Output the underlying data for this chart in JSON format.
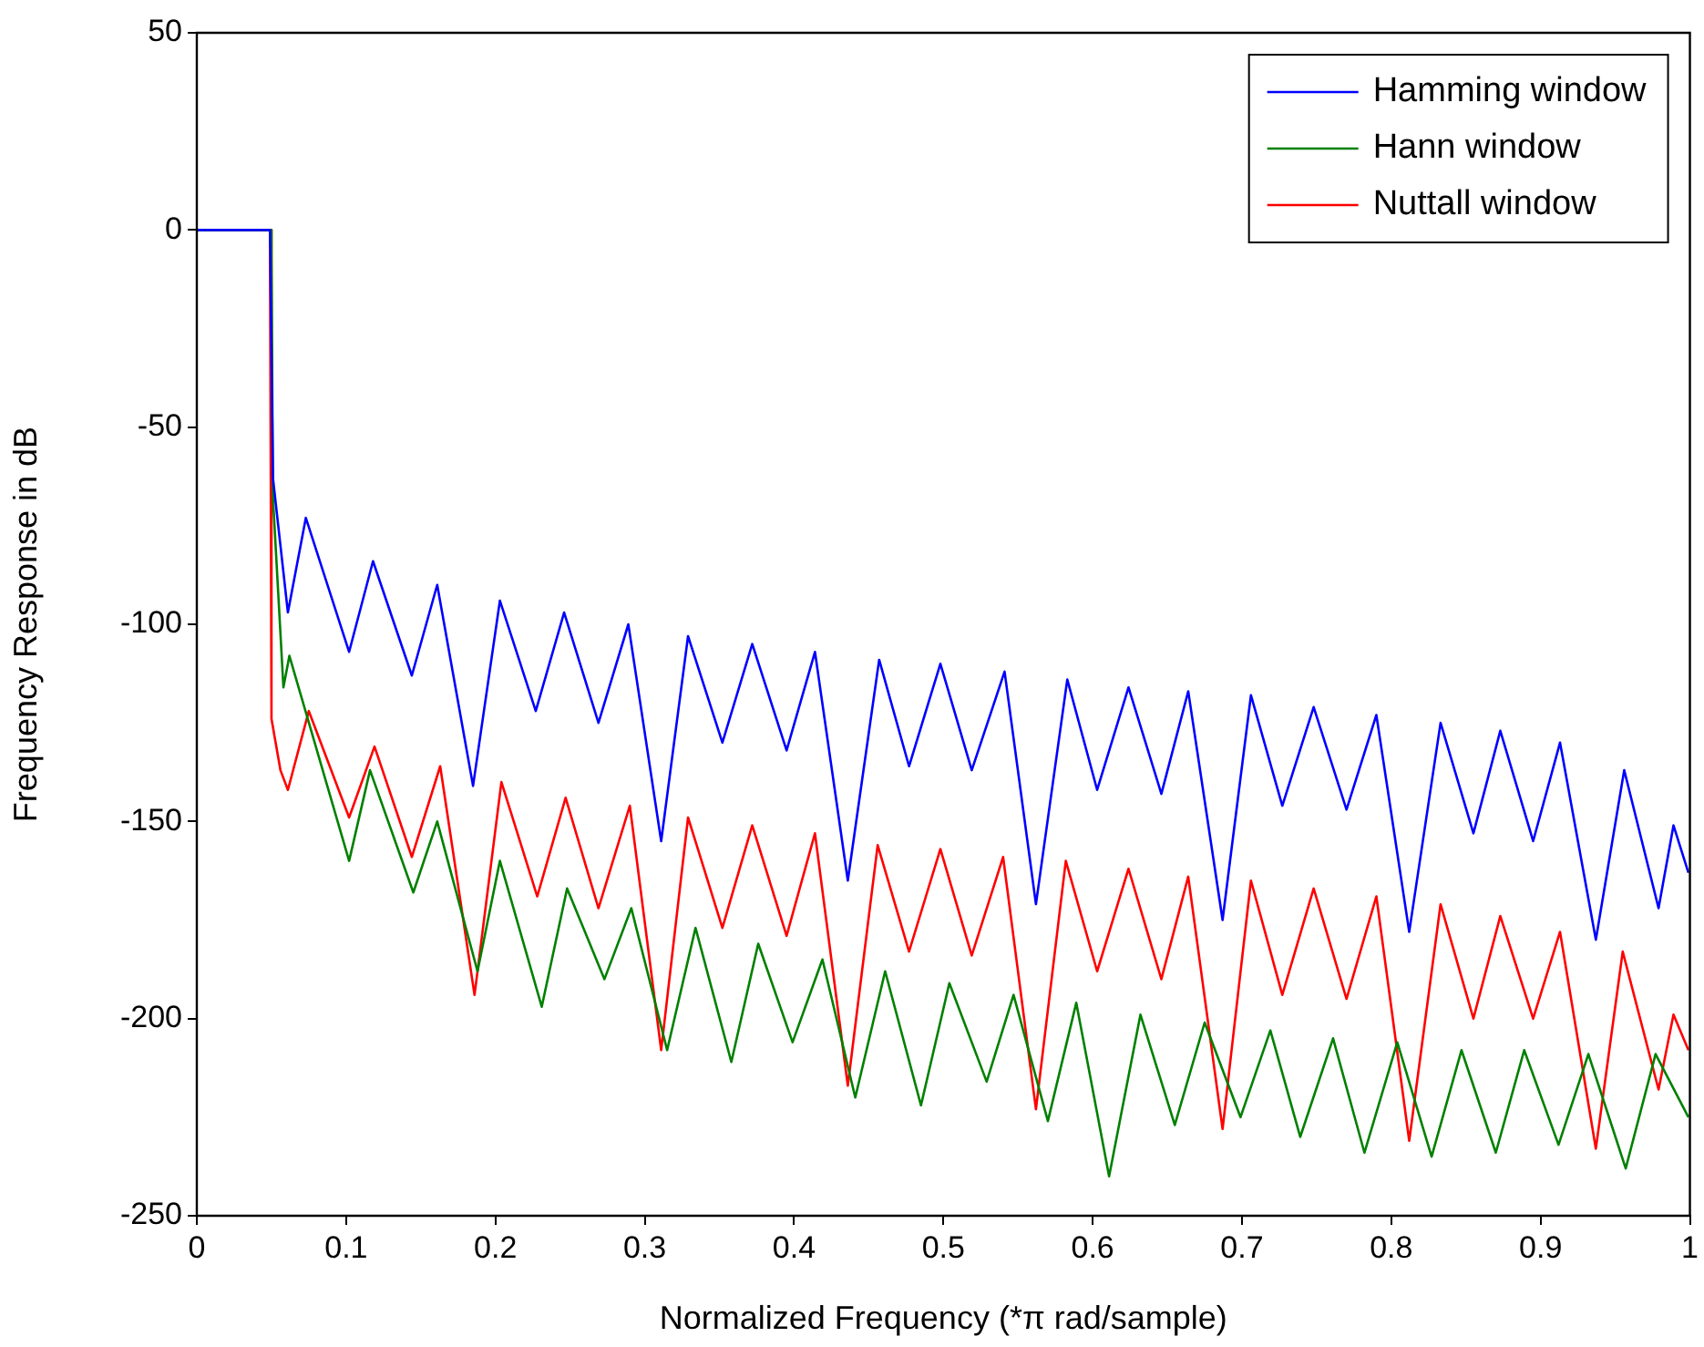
{
  "chart_data": {
    "type": "line",
    "xlabel": "Normalized Frequency (*π rad/sample)",
    "ylabel": "Frequency Response in dB",
    "xlim": [
      0,
      1
    ],
    "xticks": [
      0,
      0.1,
      0.2,
      0.3,
      0.4,
      0.5,
      0.6,
      0.7,
      0.8,
      0.9,
      1
    ],
    "ylim": [
      -250,
      50
    ],
    "yticks": [
      -250,
      -200,
      -150,
      -100,
      -50,
      0,
      50
    ],
    "grid": false,
    "legend": "top right",
    "marker": "none",
    "line_style": "solid",
    "series": [
      {
        "name": "Hamming window",
        "color": "#0000ff",
        "x": [
          0,
          0.049,
          0.051,
          0.061,
          0.073,
          0.102,
          0.118,
          0.144,
          0.161,
          0.185,
          0.203,
          0.227,
          0.246,
          0.269,
          0.289,
          0.311,
          0.329,
          0.352,
          0.372,
          0.395,
          0.414,
          0.436,
          0.457,
          0.477,
          0.498,
          0.519,
          0.541,
          0.562,
          0.583,
          0.603,
          0.624,
          0.646,
          0.664,
          0.687,
          0.706,
          0.727,
          0.748,
          0.77,
          0.79,
          0.812,
          0.833,
          0.855,
          0.873,
          0.895,
          0.913,
          0.937,
          0.956,
          0.979,
          0.989,
          0.999
        ],
        "values": [
          0,
          0,
          -63,
          -97,
          -73,
          -107,
          -84,
          -113,
          -90,
          -141,
          -94,
          -122,
          -97,
          -125,
          -100,
          -155,
          -103,
          -130,
          -105,
          -132,
          -107,
          -165,
          -109,
          -136,
          -110,
          -137,
          -112,
          -171,
          -114,
          -142,
          -116,
          -143,
          -117,
          -175,
          -118,
          -146,
          -121,
          -147,
          -123,
          -178,
          -125,
          -153,
          -127,
          -155,
          -130,
          -180,
          -137,
          -172,
          -151,
          -163
        ]
      },
      {
        "name": "Hann window",
        "color": "#008000",
        "x": [
          0,
          0.049,
          0.05,
          0.051,
          0.058,
          0.062,
          0.102,
          0.116,
          0.145,
          0.161,
          0.188,
          0.203,
          0.231,
          0.248,
          0.273,
          0.291,
          0.315,
          0.334,
          0.358,
          0.376,
          0.399,
          0.419,
          0.441,
          0.461,
          0.485,
          0.504,
          0.529,
          0.547,
          0.57,
          0.589,
          0.611,
          0.632,
          0.655,
          0.675,
          0.699,
          0.719,
          0.739,
          0.761,
          0.782,
          0.804,
          0.827,
          0.847,
          0.87,
          0.889,
          0.912,
          0.932,
          0.957,
          0.977,
          0.999
        ],
        "values": [
          0,
          0,
          -7,
          -68,
          -116,
          -108,
          -160,
          -137,
          -168,
          -150,
          -188,
          -160,
          -197,
          -167,
          -190,
          -172,
          -208,
          -177,
          -211,
          -181,
          -206,
          -185,
          -220,
          -188,
          -222,
          -191,
          -216,
          -194,
          -226,
          -196,
          -240,
          -199,
          -227,
          -201,
          -225,
          -203,
          -230,
          -205,
          -234,
          -206,
          -235,
          -208,
          -234,
          -208,
          -232,
          -209,
          -238,
          -209,
          -225
        ]
      },
      {
        "name": "Nuttall window",
        "color": "#ff0000",
        "x": [
          0,
          0.049,
          0.05,
          0.056,
          0.061,
          0.075,
          0.102,
          0.119,
          0.144,
          0.163,
          0.186,
          0.204,
          0.228,
          0.247,
          0.269,
          0.29,
          0.311,
          0.329,
          0.352,
          0.372,
          0.395,
          0.414,
          0.436,
          0.456,
          0.477,
          0.498,
          0.519,
          0.54,
          0.562,
          0.582,
          0.603,
          0.624,
          0.646,
          0.664,
          0.687,
          0.706,
          0.727,
          0.748,
          0.77,
          0.79,
          0.812,
          0.833,
          0.855,
          0.873,
          0.895,
          0.913,
          0.937,
          0.955,
          0.979,
          0.989,
          0.999
        ],
        "values": [
          0,
          0,
          -124,
          -137,
          -142,
          -122,
          -149,
          -131,
          -159,
          -136,
          -194,
          -140,
          -169,
          -144,
          -172,
          -146,
          -208,
          -149,
          -177,
          -151,
          -179,
          -153,
          -217,
          -156,
          -183,
          -157,
          -184,
          -159,
          -223,
          -160,
          -188,
          -162,
          -190,
          -164,
          -228,
          -165,
          -194,
          -167,
          -195,
          -169,
          -231,
          -171,
          -200,
          -174,
          -200,
          -178,
          -233,
          -183,
          -218,
          -199,
          -208
        ]
      }
    ]
  }
}
